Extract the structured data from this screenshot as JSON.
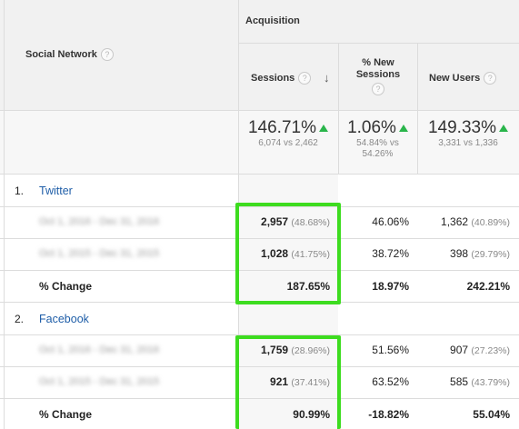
{
  "header": {
    "dimension_label": "Social Network",
    "group_label": "Acquisition",
    "columns": [
      {
        "label": "Sessions"
      },
      {
        "label_line1": "% New",
        "label_line2": "Sessions"
      },
      {
        "label": "New Users"
      }
    ]
  },
  "summary": {
    "sessions": {
      "value": "146.71%",
      "detail": "6,074 vs 2,462"
    },
    "new_sessions": {
      "value": "1.06%",
      "detail_line1": "54.84% vs",
      "detail_line2": "54.26%"
    },
    "new_users": {
      "value": "149.33%",
      "detail": "3,331 vs 1,336"
    }
  },
  "groups": [
    {
      "index": "1.",
      "name": "Twitter",
      "rows": [
        {
          "label": "Oct 1, 2016 - Dec 31, 2016",
          "sessions": "2,957",
          "sessions_pct": "(48.68%)",
          "new_sessions": "46.06%",
          "new_users": "1,362",
          "new_users_pct": "(40.89%)"
        },
        {
          "label": "Oct 1, 2015 - Dec 31, 2015",
          "sessions": "1,028",
          "sessions_pct": "(41.75%)",
          "new_sessions": "38.72%",
          "new_users": "398",
          "new_users_pct": "(29.79%)"
        }
      ],
      "change": {
        "label": "% Change",
        "sessions": "187.65%",
        "new_sessions": "18.97%",
        "new_users": "242.21%"
      }
    },
    {
      "index": "2.",
      "name": "Facebook",
      "rows": [
        {
          "label": "Oct 1, 2016 - Dec 31, 2016",
          "sessions": "1,759",
          "sessions_pct": "(28.96%)",
          "new_sessions": "51.56%",
          "new_users": "907",
          "new_users_pct": "(27.23%)"
        },
        {
          "label": "Oct 1, 2015 - Dec 31, 2015",
          "sessions": "921",
          "sessions_pct": "(37.41%)",
          "new_sessions": "63.52%",
          "new_users": "585",
          "new_users_pct": "(43.79%)"
        }
      ],
      "change": {
        "label": "% Change",
        "sessions": "90.99%",
        "new_sessions": "-18.82%",
        "new_users": "55.04%"
      }
    }
  ],
  "colors": {
    "highlight": "#3ddc1f",
    "up_arrow": "#2ab54b",
    "link": "#1f5ea8"
  },
  "icons": {
    "help": "help-circle-icon",
    "sort": "arrow-down-icon",
    "trend": "up-triangle-icon"
  }
}
